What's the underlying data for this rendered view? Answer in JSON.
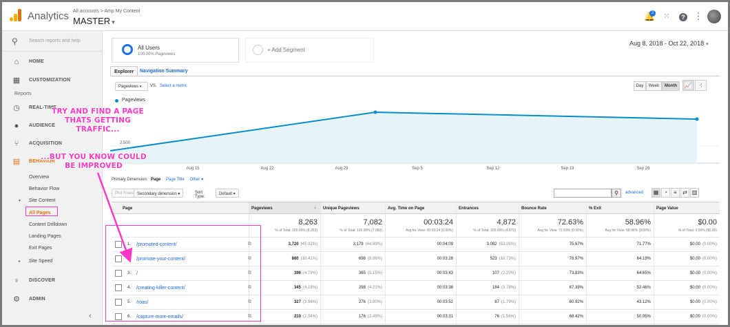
{
  "header": {
    "app_name": "Analytics",
    "breadcrumb": "All accounts > Amp My Content",
    "account": "MASTER",
    "notification_count": "2"
  },
  "sidebar": {
    "search_placeholder": "Search reports and help",
    "home": "HOME",
    "customization": "CUSTOMIZATION",
    "reports_label": "Reports",
    "realtime": "REAL-TIME",
    "audience": "AUDIENCE",
    "acquisition": "ACQUISITION",
    "behavior": "BEHAVIOR",
    "sub": {
      "overview": "Overview",
      "behavior_flow": "Behavior Flow",
      "site_content": "Site Content",
      "all_pages": "All Pages",
      "content_drilldown": "Content Drilldown",
      "landing_pages": "Landing Pages",
      "exit_pages": "Exit Pages",
      "site_speed": "Site Speed"
    },
    "discover": "DISCOVER",
    "admin": "ADMIN"
  },
  "segments": {
    "active_name": "All Users",
    "active_sub": "100.00% Pageviews",
    "add": "+ Add Segment"
  },
  "date_range": "Aug 8, 2018 - Oct 22, 2018",
  "tabs": {
    "explorer": "Explorer",
    "nav_summary": "Navigation Summary"
  },
  "controls": {
    "metric": "Pageviews",
    "vs": "VS.",
    "select_metric": "Select a metric",
    "granularity": [
      "Day",
      "Week",
      "Month"
    ],
    "granularity_active": "Month"
  },
  "chart_data": {
    "type": "area",
    "series": [
      {
        "name": "Pageviews",
        "values": [
          1800,
          7400,
          6400
        ]
      }
    ],
    "point_dates": [
      "Aug 8",
      "Sep 1",
      "Oct 22"
    ],
    "x_tick_labels": [
      "Aug 15",
      "Aug 22",
      "Aug 29",
      "Sep 5",
      "Sep 12",
      "Sep 19",
      "Sep 26"
    ],
    "y_tick_labels": [
      "2,500"
    ],
    "color": "#058dc7"
  },
  "dimension": {
    "label": "Primary Dimension:",
    "page": "Page",
    "page_title": "Page Title",
    "other": "Other"
  },
  "toolbar": {
    "plot_rows": "Plot Rows",
    "secondary": "Secondary dimension",
    "sort_type": "Sort Type:",
    "default": "Default",
    "advanced": "advanced"
  },
  "table": {
    "headers": [
      "Page",
      "Pageviews",
      "Unique Pageviews",
      "Avg. Time on Page",
      "Entrances",
      "Bounce Rate",
      "% Exit",
      "Page Value"
    ],
    "totals": [
      {
        "value": "8,263",
        "sub": "% of Total: 100.00% (8,263)"
      },
      {
        "value": "7,082",
        "sub": "% of Total: 100.00% (7,082)"
      },
      {
        "value": "00:03:24",
        "sub": "Avg for View: 00:03:24 (0.00%)"
      },
      {
        "value": "4,872",
        "sub": "% of Total: 100.00% (4,872)"
      },
      {
        "value": "72.63%",
        "sub": "Avg for View: 72.63% (0.00%)"
      },
      {
        "value": "58.96%",
        "sub": "Avg for View: 58.96% (0.00%)"
      },
      {
        "value": "$0.00",
        "sub": "% of Total: 0.00% ($0.00)"
      }
    ],
    "rows": [
      {
        "n": "1.",
        "page": "/promoted-content/",
        "pv": "3,720",
        "pvp": "(45.02%)",
        "upv": "3,179",
        "upvp": "(44.89%)",
        "time": "00:04:09",
        "ent": "3,082",
        "entp": "(63.26%)",
        "bounce": "75.67%",
        "exit": "71.77%",
        "val": "$0.00",
        "valp": "(0.00%)"
      },
      {
        "n": "2.",
        "page": "/promote-your-content/",
        "pv": "860",
        "pvp": "(10.41%)",
        "upv": "698",
        "upvp": "(9.86%)",
        "time": "00:03:28",
        "ent": "523",
        "entp": "(10.73%)",
        "bounce": "78.97%",
        "exit": "64.19%",
        "val": "$0.00",
        "valp": "(0.00%)"
      },
      {
        "n": "3.",
        "page": "/",
        "pv": "396",
        "pvp": "(4.79%)",
        "upv": "365",
        "upvp": "(5.15%)",
        "time": "00:03:43",
        "ent": "107",
        "entp": "(2.20%)",
        "bounce": "73.83%",
        "exit": "64.65%",
        "val": "$0.00",
        "valp": "(0.00%)"
      },
      {
        "n": "4.",
        "page": "/creating-killer-content/",
        "pv": "345",
        "pvp": "(4.18%)",
        "upv": "298",
        "upvp": "(4.21%)",
        "time": "00:03:38",
        "ent": "184",
        "entp": "(3.78%)",
        "bounce": "67.39%",
        "exit": "52.46%",
        "val": "$0.00",
        "valp": "(0.00%)"
      },
      {
        "n": "5.",
        "page": "/roas/",
        "pv": "327",
        "pvp": "(3.96%)",
        "upv": "276",
        "upvp": "(3.90%)",
        "time": "00:03:52",
        "ent": "87",
        "entp": "(1.79%)",
        "bounce": "60.92%",
        "exit": "43.12%",
        "val": "$0.00",
        "valp": "(0.00%)"
      },
      {
        "n": "6.",
        "page": "/capture-more-emails/",
        "pv": "210",
        "pvp": "(2.54%)",
        "upv": "176",
        "upvp": "(2.49%)",
        "time": "00:03:31",
        "ent": "76",
        "entp": "(1.56%)",
        "bounce": "68.42%",
        "exit": "50.95%",
        "val": "$0.00",
        "valp": "(0.00%)"
      }
    ]
  },
  "annotations": {
    "line1": "TRY AND FIND A PAGE",
    "line2": "THATS GETTING",
    "line3": "TRAFFIC...",
    "line4": "...BUT YOU KNOW COULD",
    "line5": "BE IMPROVED",
    "color": "#ff38c8"
  }
}
